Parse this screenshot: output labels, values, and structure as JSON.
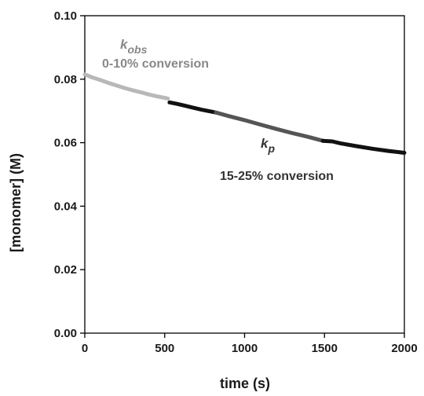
{
  "chart_data": {
    "type": "line",
    "title": "",
    "xlabel": "time (s)",
    "ylabel": "[monomer] (M)",
    "xlim": [
      0,
      2000
    ],
    "ylim": [
      0,
      0.1
    ],
    "x_ticks": [
      0,
      500,
      1000,
      1500,
      2000
    ],
    "x_tick_labels": [
      "0",
      "500",
      "1000",
      "1500",
      "2000"
    ],
    "y_ticks": [
      0,
      0.02,
      0.04,
      0.06,
      0.08,
      0.1
    ],
    "y_tick_labels": [
      "0.00",
      "0.02",
      "0.04",
      "0.06",
      "0.08",
      "0.10"
    ],
    "grid": false,
    "series": [
      {
        "color": "#b8b8b8",
        "x": [
          0,
          50,
          100,
          150,
          200,
          250,
          300,
          350,
          400,
          450,
          500,
          520
        ],
        "y": [
          0.0815,
          0.0805,
          0.0797,
          0.0788,
          0.078,
          0.0772,
          0.0765,
          0.0759,
          0.0752,
          0.0746,
          0.0741,
          0.0739
        ]
      },
      {
        "color": "#111111",
        "x": [
          530,
          580,
          630,
          680,
          730,
          780,
          820
        ],
        "y": [
          0.0727,
          0.0722,
          0.0716,
          0.071,
          0.0704,
          0.0699,
          0.0695
        ]
      },
      {
        "color": "#555555",
        "x": [
          820,
          900,
          1000,
          1100,
          1200,
          1300,
          1400,
          1490
        ],
        "y": [
          0.0695,
          0.0684,
          0.0671,
          0.0657,
          0.0643,
          0.063,
          0.0618,
          0.0606
        ]
      },
      {
        "color": "#111111",
        "x": [
          1490,
          1550,
          1600,
          1700,
          1800,
          1900,
          2000
        ],
        "y": [
          0.0606,
          0.0604,
          0.0598,
          0.0589,
          0.0581,
          0.0574,
          0.0568
        ]
      }
    ],
    "annotations": [
      {
        "symbol": "k",
        "subscript": "obs",
        "text": "0-10% conversion",
        "color": "#888888"
      },
      {
        "symbol": "k",
        "subscript": "p",
        "text": "15-25% conversion",
        "color": "#333333"
      }
    ]
  }
}
